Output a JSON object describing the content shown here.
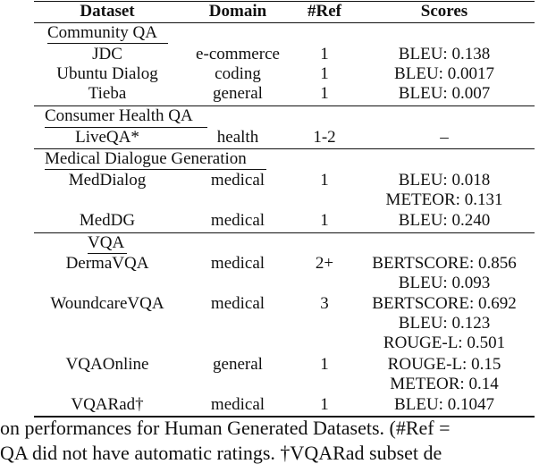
{
  "header": {
    "dataset": "Dataset",
    "domain": "Domain",
    "ref": "#Ref",
    "scores": "Scores"
  },
  "sections": [
    {
      "title": "Community QA",
      "rows": [
        {
          "dataset": "JDC",
          "domain": "e-commerce",
          "ref": "1",
          "scores": [
            "BLEU: 0.138"
          ]
        },
        {
          "dataset": "Ubuntu Dialog",
          "domain": "coding",
          "ref": "1",
          "scores": [
            "BLEU: 0.0017"
          ]
        },
        {
          "dataset": "Tieba",
          "domain": "general",
          "ref": "1",
          "scores": [
            "BLEU: 0.007"
          ]
        }
      ]
    },
    {
      "title": "Consumer Health QA",
      "rows": [
        {
          "dataset": "LiveQA*",
          "domain": "health",
          "ref": "1-2",
          "scores": [
            "–"
          ]
        }
      ]
    },
    {
      "title": "Medical Dialogue Generation",
      "rows": [
        {
          "dataset": "MedDialog",
          "domain": "medical",
          "ref": "1",
          "scores": [
            "BLEU: 0.018",
            "METEOR: 0.131"
          ]
        },
        {
          "dataset": "MedDG",
          "domain": "medical",
          "ref": "1",
          "scores": [
            "BLEU: 0.240"
          ]
        }
      ]
    },
    {
      "title": "VQA",
      "rows": [
        {
          "dataset": "DermaVQA",
          "domain": "medical",
          "ref": "2+",
          "scores": [
            "BERTSCORE: 0.856",
            "BLEU: 0.093"
          ]
        },
        {
          "dataset": "WoundcareVQA",
          "domain": "medical",
          "ref": "3",
          "scores": [
            "BERTSCORE: 0.692",
            "BLEU: 0.123",
            "ROUGE-L: 0.501"
          ]
        },
        {
          "dataset": "VQAOnline",
          "domain": "general",
          "ref": "1",
          "scores": [
            "ROUGE-L: 0.15",
            "METEOR: 0.14"
          ]
        },
        {
          "dataset": "VQARad†",
          "domain": "medical",
          "ref": "1",
          "scores": [
            "BLEU: 0.1047"
          ]
        }
      ]
    }
  ],
  "caption": {
    "line1": "on performances for Human Generated Datasets. (#Ref =",
    "line2": "QA did not have automatic ratings. †VQARad subset de"
  }
}
